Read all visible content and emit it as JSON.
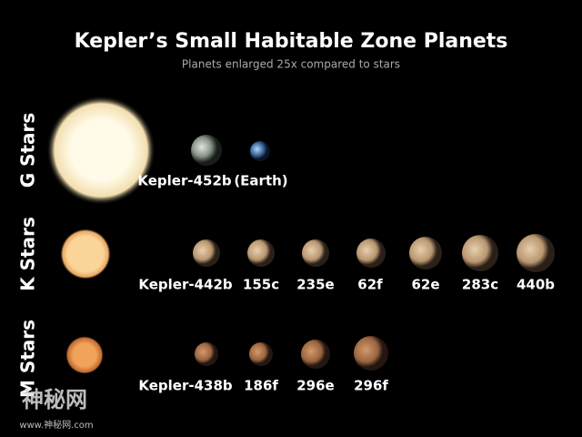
{
  "header": {
    "title": "Kepler’s Small Habitable Zone Planets",
    "subtitle": "Planets enlarged 25x compared to stars"
  },
  "rows": [
    {
      "label": "G Stars",
      "planets": [
        "Kepler-452b",
        "(Earth)"
      ]
    },
    {
      "label": "K Stars",
      "planets": [
        "Kepler-442b",
        "155c",
        "235e",
        "62f",
        "62e",
        "283c",
        "440b"
      ]
    },
    {
      "label": "M Stars",
      "planets": [
        "Kepler-438b",
        "186f",
        "296e",
        "296f"
      ]
    }
  ],
  "watermark": {
    "logo": "神秘网",
    "url": "www.神秘网.com"
  }
}
